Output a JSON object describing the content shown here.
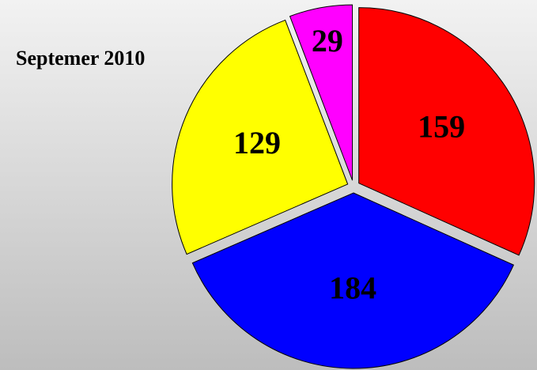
{
  "chart_data": {
    "type": "pie",
    "title": "Septemer 2010",
    "categories": [
      null,
      null,
      null,
      null
    ],
    "values": [
      159,
      184,
      129,
      29
    ],
    "colors": [
      "#ff0000",
      "#0000ff",
      "#ffff00",
      "#ff00ff"
    ]
  }
}
